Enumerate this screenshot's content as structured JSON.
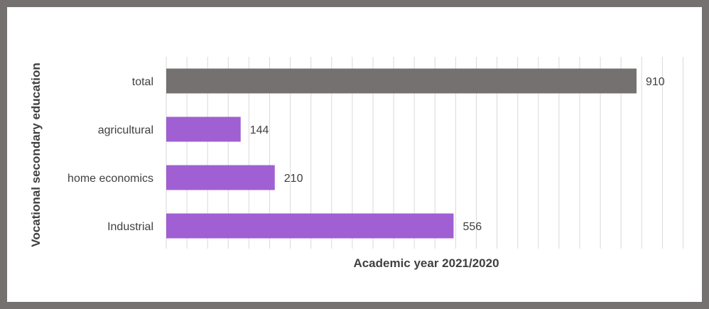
{
  "chart_data": {
    "type": "bar",
    "orientation": "horizontal",
    "categories": [
      "total",
      "agricultural",
      "home economics",
      "Industrial"
    ],
    "values": [
      910,
      144,
      210,
      556
    ],
    "bar_colors": [
      "#767171",
      "#a05fd3",
      "#a05fd3",
      "#a05fd3"
    ],
    "xlabel": "Academic year 2021/2020",
    "ylabel": "Vocational secondary education",
    "xlim": [
      0,
      1000
    ],
    "grid": true,
    "legend": "none"
  },
  "colors": {
    "frame": "#757171",
    "total_bar": "#767171",
    "category_bar": "#a05fd3",
    "gridline": "#d9d9d9",
    "text": "#404040"
  }
}
